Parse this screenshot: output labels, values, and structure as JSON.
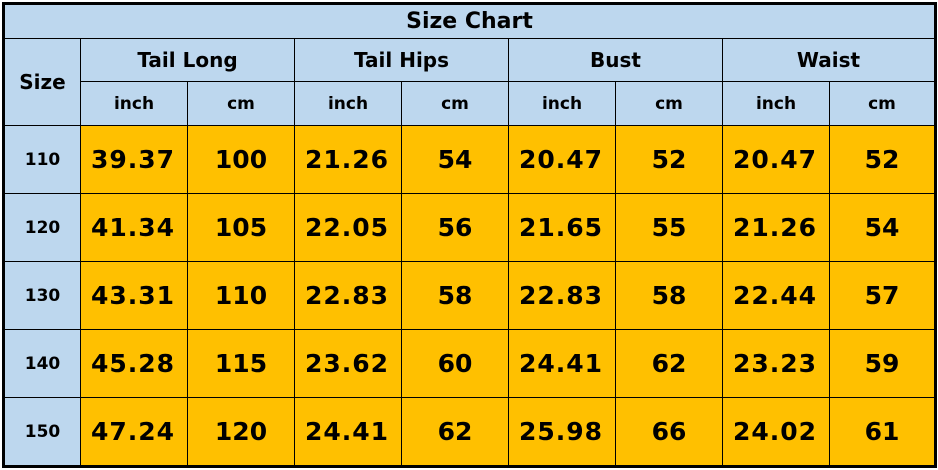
{
  "title": "Size Chart",
  "size_header": "Size",
  "groups": [
    "Tail Long",
    "Tail Hips",
    "Bust",
    "Waist"
  ],
  "units": [
    "inch",
    "cm"
  ],
  "colors": {
    "header_bg": "#BDD7EE",
    "data_bg": "#FFC000"
  },
  "rows": [
    {
      "size": "110",
      "values": [
        "39.37",
        "100",
        "21.26",
        "54",
        "20.47",
        "52",
        "20.47",
        "52"
      ]
    },
    {
      "size": "120",
      "values": [
        "41.34",
        "105",
        "22.05",
        "56",
        "21.65",
        "55",
        "21.26",
        "54"
      ]
    },
    {
      "size": "130",
      "values": [
        "43.31",
        "110",
        "22.83",
        "58",
        "22.83",
        "58",
        "22.44",
        "57"
      ]
    },
    {
      "size": "140",
      "values": [
        "45.28",
        "115",
        "23.62",
        "60",
        "24.41",
        "62",
        "23.23",
        "59"
      ]
    },
    {
      "size": "150",
      "values": [
        "47.24",
        "120",
        "24.41",
        "62",
        "25.98",
        "66",
        "24.02",
        "61"
      ]
    }
  ]
}
